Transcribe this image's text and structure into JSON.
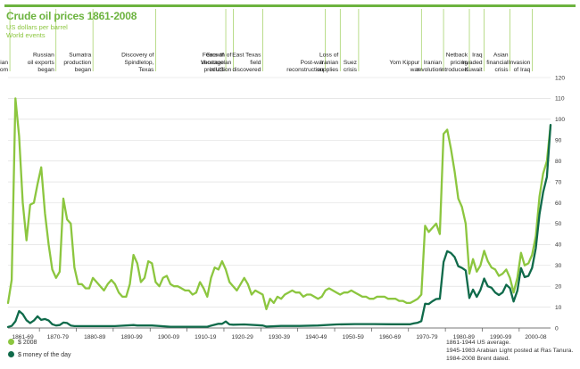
{
  "header": {
    "title": "Crude oil prices 1861-2008",
    "subtitle": "US dollars per barrel",
    "subtitle2": "World events"
  },
  "legend": [
    {
      "label": "$ 2008",
      "color": "#8cc63f"
    },
    {
      "label": "$ money of the day",
      "color": "#0f6a4a"
    }
  ],
  "notes": [
    "1861-1944 US average.",
    "1945-1983 Arabian Light posted at Ras Tanura.",
    "1984-2008 Brent dated."
  ],
  "events": [
    {
      "year": 1861.5,
      "lines": [
        "Pennsylvanian",
        "oil boom"
      ]
    },
    {
      "year": 1874,
      "lines": [
        "Russian",
        "oil exports",
        "began"
      ]
    },
    {
      "year": 1884,
      "lines": [
        "Sumatra",
        "production",
        "began"
      ]
    },
    {
      "year": 1901,
      "lines": [
        "Discovery of",
        "Spindletop,",
        "Texas"
      ]
    },
    {
      "year": 1920,
      "lines": [
        "Fears of",
        "shortage",
        "in US"
      ]
    },
    {
      "year": 1922,
      "lines": [
        "Growth of",
        "Venezuelan",
        "production"
      ]
    },
    {
      "year": 1930,
      "lines": [
        "East Texas",
        "field",
        "discovered"
      ]
    },
    {
      "year": 1947,
      "lines": [
        "Post-war",
        "reconstruction"
      ]
    },
    {
      "year": 1951,
      "lines": [
        "Loss of",
        "Iranian",
        "supplies"
      ]
    },
    {
      "year": 1956,
      "lines": [
        "Suez",
        "crisis"
      ]
    },
    {
      "year": 1973,
      "lines": [
        "Yom Kippur",
        "war"
      ]
    },
    {
      "year": 1979,
      "lines": [
        "Iranian",
        "revolution"
      ]
    },
    {
      "year": 1986,
      "lines": [
        "Netback",
        "pricing",
        "introduced"
      ]
    },
    {
      "year": 1990,
      "lines": [
        "Iraq",
        "invaded",
        "Kuwait"
      ]
    },
    {
      "year": 1997,
      "lines": [
        "Asian",
        "financial",
        "crisis"
      ]
    },
    {
      "year": 2003,
      "lines": [
        "Invasion",
        "of Iraq"
      ]
    }
  ],
  "chart_data": {
    "type": "line",
    "title": "Crude oil prices 1861-2008",
    "ylabel": "US dollars per barrel",
    "xlim": [
      1861,
      2008
    ],
    "ylim": [
      0,
      120
    ],
    "yticks": [
      0,
      10,
      20,
      30,
      40,
      50,
      60,
      70,
      80,
      90,
      100,
      110,
      120
    ],
    "x_tick_labels": [
      "1861-69",
      "1870-79",
      "1880-89",
      "1890-99",
      "1900-09",
      "1910-19",
      "1920-29",
      "1930-39",
      "1940-49",
      "1950-59",
      "1960-69",
      "1970-79",
      "1980-89",
      "1990-99",
      "2000-08"
    ],
    "series": [
      {
        "name": "$ 2008",
        "color": "#8cc63f",
        "x": [
          1861,
          1862,
          1863,
          1864,
          1865,
          1866,
          1867,
          1868,
          1869,
          1870,
          1871,
          1872,
          1873,
          1874,
          1875,
          1876,
          1877,
          1878,
          1879,
          1880,
          1881,
          1882,
          1883,
          1884,
          1885,
          1886,
          1887,
          1888,
          1889,
          1890,
          1891,
          1892,
          1893,
          1894,
          1895,
          1896,
          1897,
          1898,
          1899,
          1900,
          1901,
          1902,
          1903,
          1904,
          1905,
          1906,
          1907,
          1908,
          1909,
          1910,
          1911,
          1912,
          1913,
          1914,
          1915,
          1916,
          1917,
          1918,
          1919,
          1920,
          1921,
          1922,
          1923,
          1924,
          1925,
          1926,
          1927,
          1928,
          1929,
          1930,
          1931,
          1932,
          1933,
          1934,
          1935,
          1936,
          1937,
          1938,
          1939,
          1940,
          1941,
          1942,
          1943,
          1944,
          1945,
          1946,
          1947,
          1948,
          1949,
          1950,
          1951,
          1952,
          1953,
          1954,
          1955,
          1956,
          1957,
          1958,
          1959,
          1960,
          1961,
          1962,
          1963,
          1964,
          1965,
          1966,
          1967,
          1968,
          1969,
          1970,
          1971,
          1972,
          1973,
          1974,
          1975,
          1976,
          1977,
          1978,
          1979,
          1980,
          1981,
          1982,
          1983,
          1984,
          1985,
          1986,
          1987,
          1988,
          1989,
          1990,
          1991,
          1992,
          1993,
          1994,
          1995,
          1996,
          1997,
          1998,
          1999,
          2000,
          2001,
          2002,
          2003,
          2004,
          2005,
          2006,
          2007,
          2008
        ],
        "values": [
          12,
          23,
          110,
          92,
          60,
          42,
          59,
          60,
          69,
          77,
          55,
          40,
          28,
          24,
          27,
          62,
          52,
          50,
          29,
          21,
          21,
          19,
          19,
          24,
          22,
          20,
          18,
          21,
          23,
          21,
          17,
          15,
          15,
          21,
          35,
          31,
          22,
          24,
          32,
          31,
          22,
          20,
          24,
          25,
          21,
          20,
          20,
          19,
          18,
          18,
          16,
          17,
          22,
          19,
          15,
          24,
          29,
          28,
          32,
          28,
          22,
          20,
          18,
          21,
          24,
          21,
          16,
          18,
          17,
          16,
          9,
          14,
          12,
          15,
          14,
          16,
          17,
          18,
          17,
          17,
          15,
          16,
          16,
          15,
          14,
          15,
          18,
          19,
          18,
          17,
          16,
          17,
          17,
          18,
          17,
          16,
          15,
          15,
          14,
          14,
          15,
          15,
          15,
          14,
          14,
          14,
          13,
          13,
          12,
          12,
          13,
          14,
          16,
          49,
          46,
          48,
          50,
          45,
          93,
          95,
          86,
          75,
          62,
          58,
          50,
          26,
          33,
          27,
          30,
          37,
          32,
          29,
          28,
          25,
          26,
          28,
          24,
          17,
          24,
          36,
          30,
          31,
          35,
          44,
          63,
          74,
          80,
          97
        ]
      },
      {
        "name": "$ money of the day",
        "color": "#0f6a4a",
        "x": [
          1861,
          1862,
          1863,
          1864,
          1865,
          1866,
          1867,
          1868,
          1869,
          1870,
          1871,
          1872,
          1873,
          1874,
          1875,
          1876,
          1877,
          1878,
          1879,
          1880,
          1885,
          1890,
          1895,
          1896,
          1900,
          1905,
          1910,
          1915,
          1916,
          1918,
          1919,
          1920,
          1921,
          1922,
          1925,
          1930,
          1931,
          1935,
          1940,
          1945,
          1950,
          1955,
          1960,
          1965,
          1970,
          1971,
          1972,
          1973,
          1974,
          1975,
          1976,
          1977,
          1978,
          1979,
          1980,
          1981,
          1982,
          1983,
          1984,
          1985,
          1986,
          1987,
          1988,
          1989,
          1990,
          1991,
          1992,
          1993,
          1994,
          1995,
          1996,
          1997,
          1998,
          1999,
          2000,
          2001,
          2002,
          2003,
          2004,
          2005,
          2006,
          2007,
          2008
        ],
        "values": [
          0.5,
          1.0,
          3.2,
          8.1,
          6.6,
          3.7,
          2.4,
          3.6,
          5.6,
          3.9,
          4.3,
          3.6,
          1.8,
          1.2,
          1.4,
          2.6,
          2.4,
          1.2,
          0.9,
          0.9,
          0.9,
          0.9,
          1.4,
          1.2,
          1.2,
          0.6,
          0.6,
          0.6,
          1.1,
          2.0,
          2.0,
          3.1,
          1.7,
          1.6,
          1.7,
          1.2,
          0.7,
          1.0,
          1.0,
          1.2,
          1.7,
          1.9,
          1.9,
          1.8,
          1.8,
          2.2,
          2.5,
          3.3,
          11.6,
          11.5,
          12.8,
          13.9,
          14.0,
          31.6,
          36.8,
          35.9,
          34.0,
          29.6,
          28.8,
          27.6,
          14.4,
          18.4,
          14.9,
          18.2,
          23.7,
          20.0,
          19.3,
          17.0,
          15.8,
          17.0,
          20.7,
          19.1,
          12.7,
          17.9,
          28.7,
          24.4,
          25.0,
          28.8,
          38.3,
          54.5,
          65.1,
          72.4,
          97.3
        ]
      }
    ]
  }
}
